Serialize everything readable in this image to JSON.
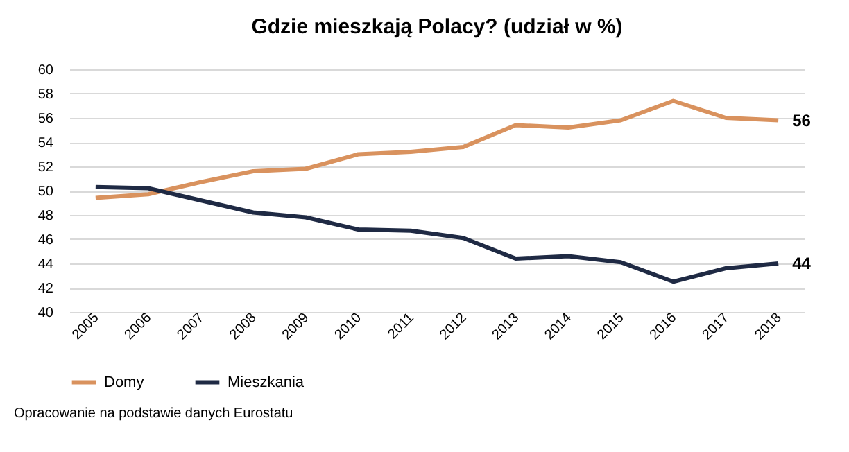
{
  "chart_data": {
    "type": "line",
    "title": "Gdzie mieszkają Polacy? (udział w %)",
    "categories": [
      "2005",
      "2006",
      "2007",
      "2008",
      "2009",
      "2010",
      "2011",
      "2012",
      "2013",
      "2014",
      "2015",
      "2016",
      "2017",
      "2018"
    ],
    "series": [
      {
        "name": "Domy",
        "color": "#d9925e",
        "values": [
          49.4,
          49.7,
          50.7,
          51.6,
          51.8,
          53.0,
          53.2,
          53.6,
          55.4,
          55.2,
          55.8,
          57.4,
          56.0,
          55.8
        ],
        "value_labels": [
          null,
          null,
          null,
          null,
          null,
          null,
          null,
          null,
          null,
          null,
          null,
          null,
          null,
          "56"
        ]
      },
      {
        "name": "Mieszkania",
        "color": "#1f2a44",
        "values": [
          50.3,
          50.2,
          49.2,
          48.2,
          47.8,
          46.8,
          46.7,
          46.1,
          44.4,
          44.6,
          44.1,
          42.5,
          43.6,
          44.0
        ],
        "value_labels": [
          null,
          null,
          null,
          null,
          null,
          null,
          null,
          null,
          null,
          null,
          null,
          null,
          null,
          "44"
        ]
      }
    ],
    "ylim": [
      40,
      60
    ],
    "yticks": [
      40,
      42,
      44,
      46,
      48,
      50,
      52,
      54,
      56,
      58,
      60
    ],
    "grid": "y",
    "legend": "bottom",
    "line_style": "solid",
    "marker": "none",
    "annotations": [
      "Opracowanie na podstawie danych Eurostatu"
    ]
  }
}
